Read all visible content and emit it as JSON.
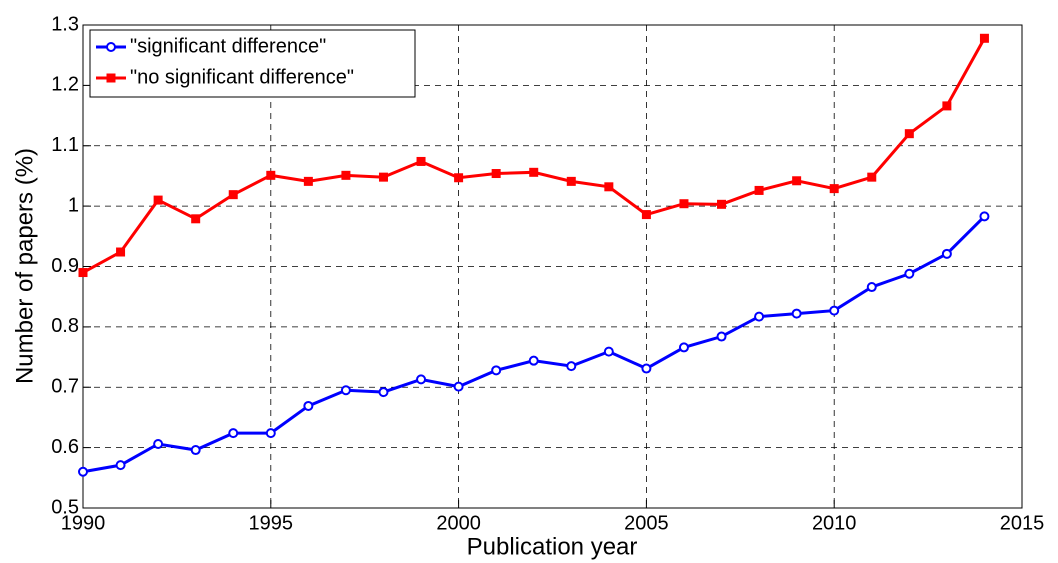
{
  "chart_data": {
    "type": "line",
    "xlabel": "Publication year",
    "ylabel": "Number of papers (%)",
    "x": [
      1990,
      1991,
      1992,
      1993,
      1994,
      1995,
      1996,
      1997,
      1998,
      1999,
      2000,
      2001,
      2002,
      2003,
      2004,
      2005,
      2006,
      2007,
      2008,
      2009,
      2010,
      2011,
      2012,
      2013,
      2014
    ],
    "series": [
      {
        "name": "\"significant difference\"",
        "color": "#0000ff",
        "marker": "circle",
        "values": [
          0.56,
          0.571,
          0.606,
          0.596,
          0.624,
          0.624,
          0.669,
          0.695,
          0.692,
          0.713,
          0.701,
          0.728,
          0.744,
          0.735,
          0.759,
          0.731,
          0.766,
          0.784,
          0.817,
          0.822,
          0.827,
          0.866,
          0.888,
          0.921,
          0.983
        ]
      },
      {
        "name": "\"no significant difference\"",
        "color": "#ff0000",
        "marker": "square",
        "values": [
          0.89,
          0.924,
          1.01,
          0.979,
          1.019,
          1.051,
          1.041,
          1.051,
          1.048,
          1.074,
          1.047,
          1.054,
          1.056,
          1.041,
          1.032,
          0.986,
          1.004,
          1.003,
          1.026,
          1.042,
          1.029,
          1.048,
          1.12,
          1.166,
          1.278
        ]
      }
    ],
    "xlim": [
      1990,
      2015
    ],
    "xticks": [
      1990,
      1995,
      2000,
      2005,
      2010,
      2015
    ],
    "ylim": [
      0.5,
      1.3
    ],
    "yticks": [
      0.5,
      0.6,
      0.7,
      0.8,
      0.9,
      1,
      1.1,
      1.2,
      1.3
    ],
    "grid": true,
    "legend": "upper left"
  }
}
